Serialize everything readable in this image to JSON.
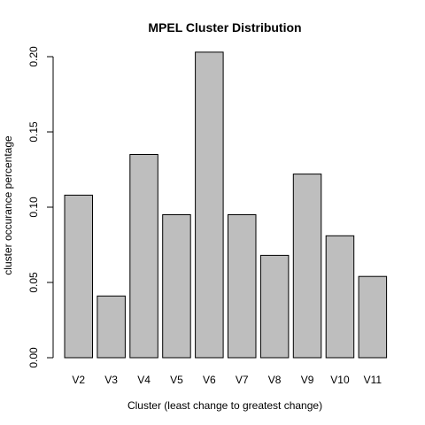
{
  "chart_data": {
    "type": "bar",
    "title": "MPEL Cluster Distribution",
    "xlabel": "Cluster (least change to greatest change)",
    "ylabel": "cluster occurance percentage",
    "categories": [
      "V2",
      "V3",
      "V4",
      "V5",
      "V6",
      "V7",
      "V8",
      "V9",
      "V10",
      "V11"
    ],
    "values": [
      0.108,
      0.041,
      0.135,
      0.095,
      0.203,
      0.095,
      0.068,
      0.122,
      0.081,
      0.054
    ],
    "ylim": [
      0,
      0.2
    ],
    "yticks": [
      "0.00",
      "0.05",
      "0.10",
      "0.15",
      "0.20"
    ],
    "grid": false,
    "colors": {
      "bar_fill": "#bebebe",
      "bar_stroke": "#000000"
    }
  }
}
